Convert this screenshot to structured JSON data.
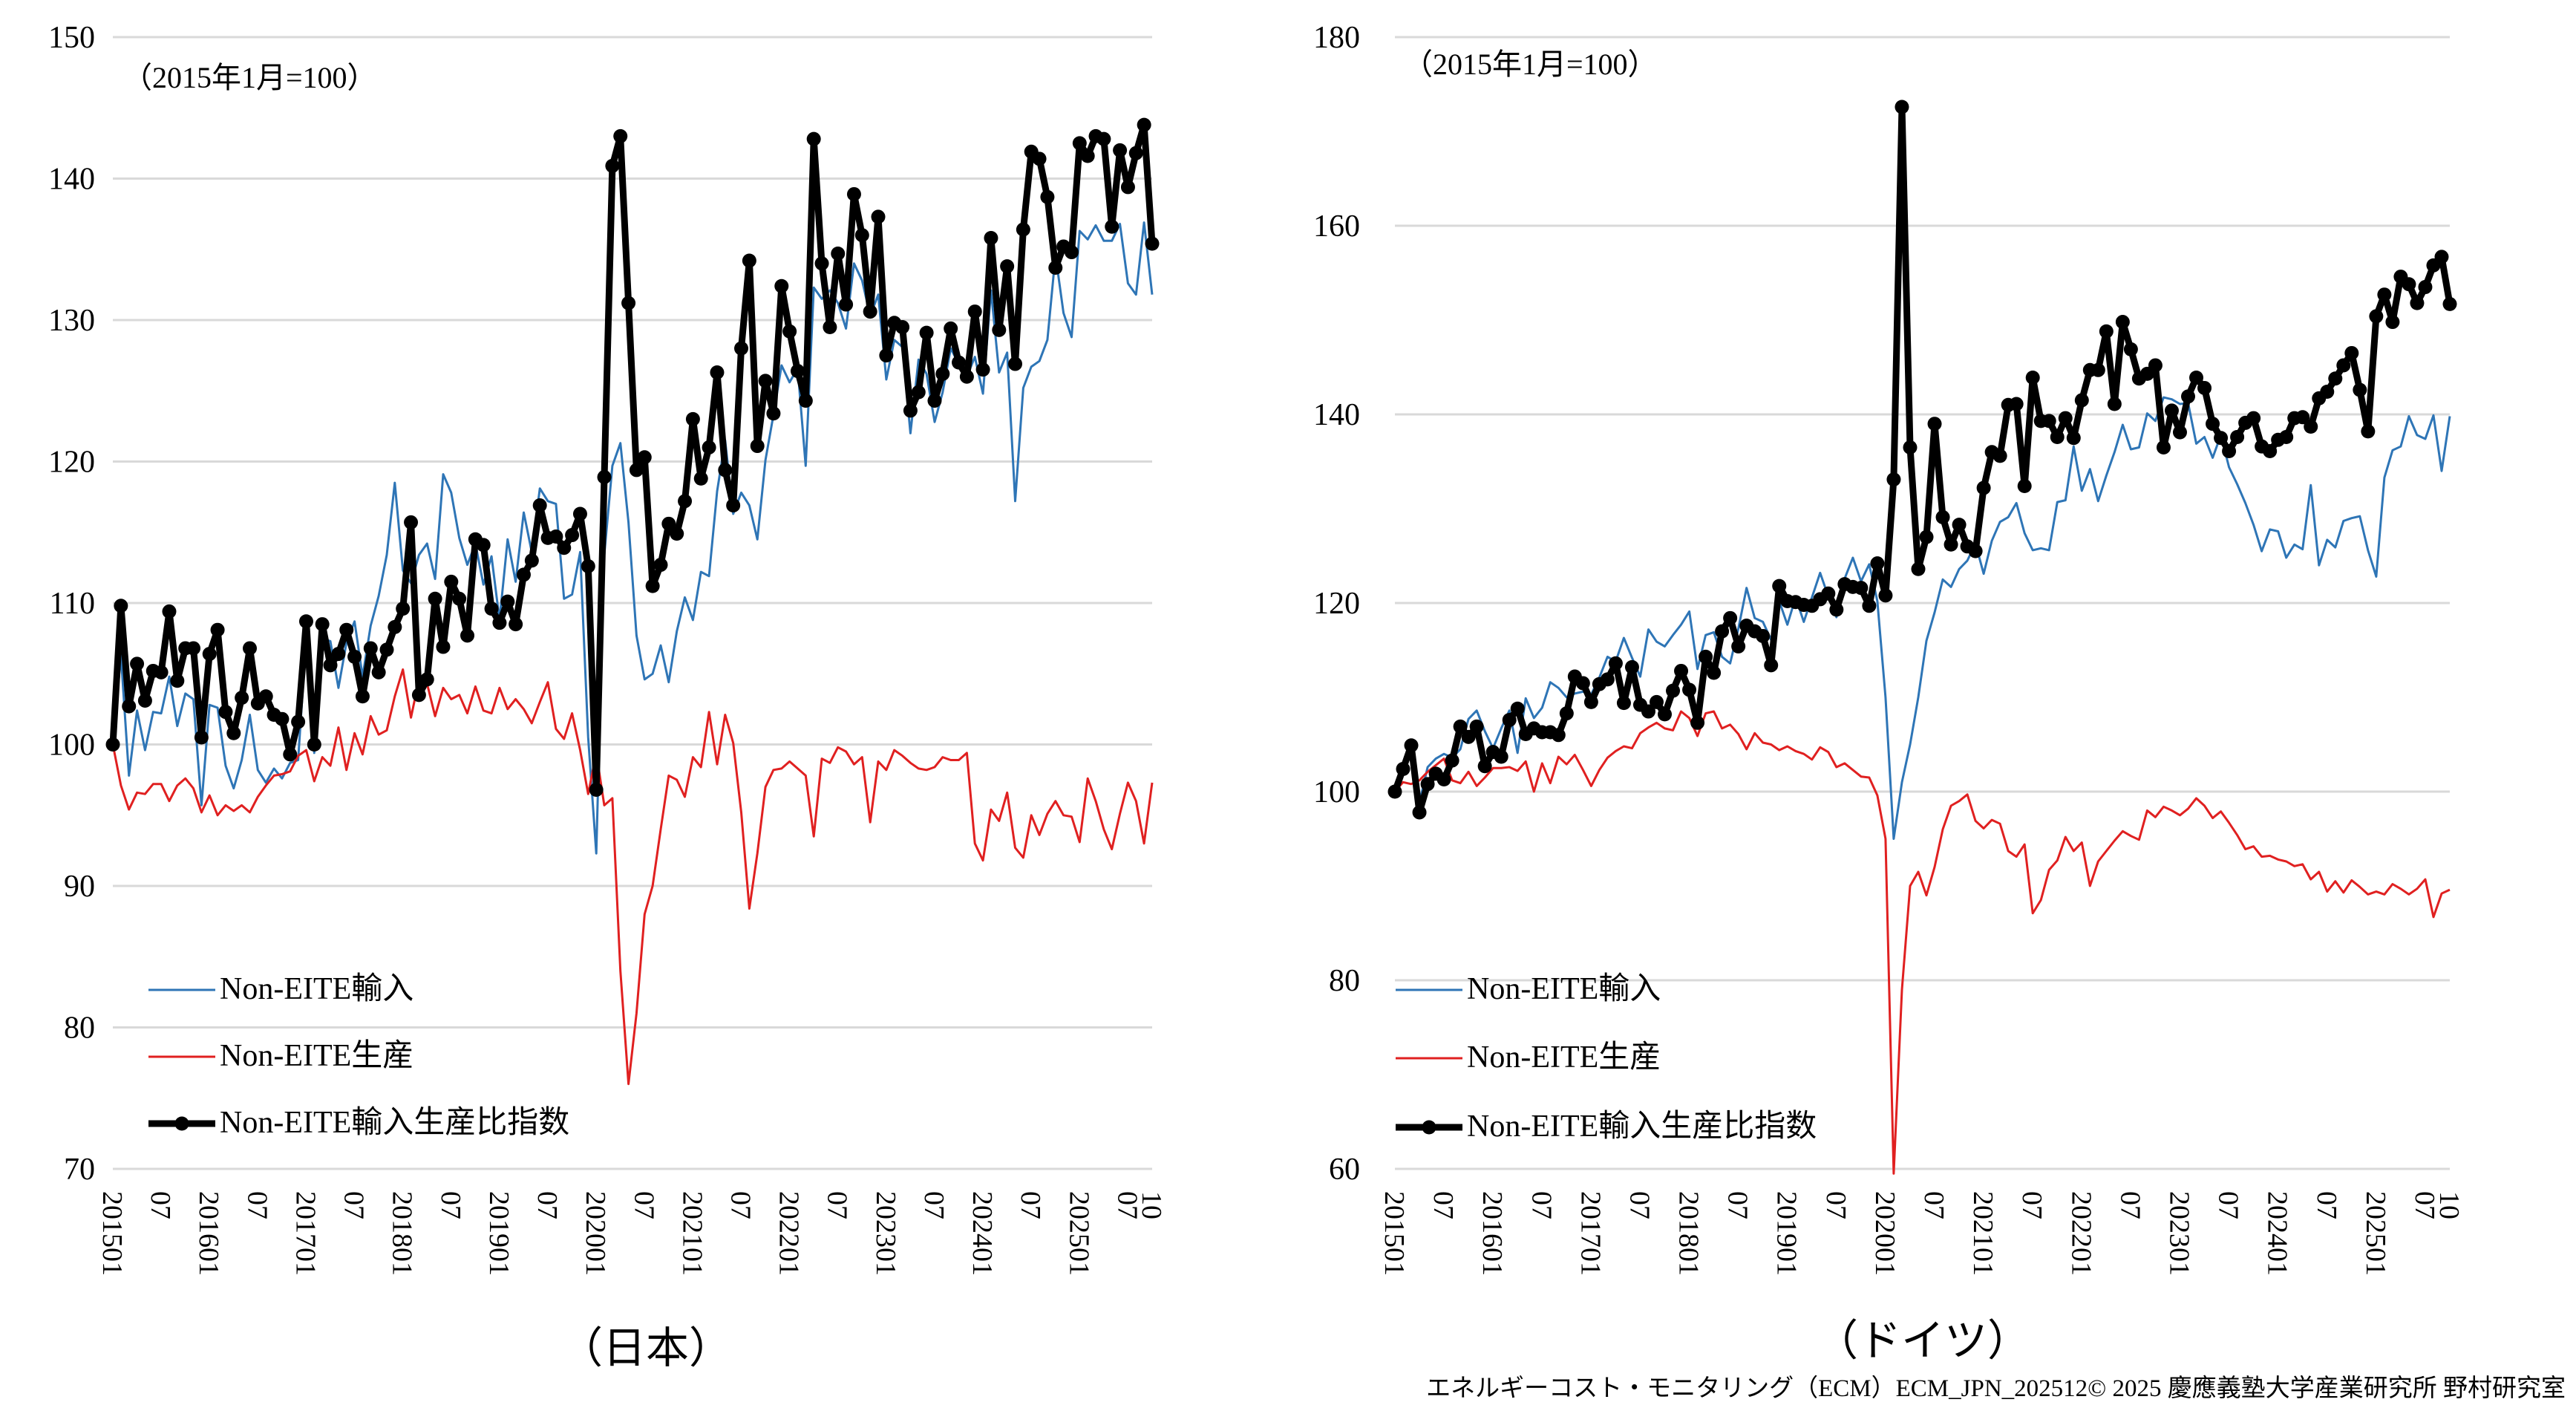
{
  "footer": "エネルギーコスト・モニタリング（ECM）ECM_JPN_202512© 2025 慶應義塾大学産業研究所 野村研究室",
  "colors": {
    "import": "#2E75B6",
    "production": "#E02020",
    "ratio": "#000000",
    "grid": "#D9D9D9"
  },
  "chart_data": [
    {
      "type": "line",
      "id": "japan",
      "caption": "（日本）",
      "note": "（2015年1月=100）",
      "ylim": [
        70,
        150
      ],
      "yticks": [
        70,
        80,
        90,
        100,
        110,
        120,
        130,
        140,
        150
      ],
      "x_start": "2015-01",
      "x_tick_labels": [
        "201501",
        "07",
        "201601",
        "07",
        "201701",
        "07",
        "201801",
        "07",
        "201901",
        "07",
        "202001",
        "07",
        "202101",
        "07",
        "202201",
        "07",
        "202301",
        "07",
        "202401",
        "07",
        "202501",
        "07",
        "10"
      ],
      "grid": true,
      "legend_position": "bottom-left",
      "series": [
        {
          "name": "Non-EITE輸入",
          "key": "import",
          "markers": false,
          "values": [
            100,
            106.3,
            97.8,
            102.4,
            99.6,
            102.3,
            102.2,
            104.8,
            101.3,
            103.6,
            103.2,
            95.7,
            102.8,
            102.6,
            98.5,
            96.9,
            98.9,
            102.1,
            98.2,
            97.3,
            98.3,
            97.6,
            98.7,
            98.9,
            107.6,
            99.4,
            107.5,
            107.3,
            104.0,
            107.2,
            108.7,
            104.8,
            108.4,
            110.5,
            113.4,
            118.5,
            112.3,
            111.4,
            113.4,
            114.2,
            111.7,
            119.1,
            117.8,
            114.6,
            112.7,
            114.2,
            111.3,
            113.3,
            108.8,
            114.5,
            111.5,
            116.4,
            113.6,
            118.1,
            117.2,
            117.0,
            110.3,
            110.6,
            113.6,
            100.5,
            92.3,
            113.4,
            119.7,
            121.3,
            115.7,
            107.7,
            104.6,
            105.0,
            107.0,
            104.4,
            108.0,
            110.4,
            108.8,
            112.2,
            111.9,
            117.9,
            121.5,
            116.3,
            117.8,
            116.9,
            114.5,
            120.1,
            123.3,
            126.8,
            125.6,
            126.6,
            119.7,
            132.3,
            131.5,
            132.1,
            131.2,
            129.4,
            134.0,
            132.8,
            130.3,
            131.8,
            125.8,
            128.6,
            128.1,
            122.0,
            127.2,
            126.2,
            122.8,
            124.9,
            128.0,
            126.9,
            126.0,
            127.4,
            124.8,
            132.1,
            126.3,
            127.7,
            117.2,
            125.2,
            126.7,
            127.1,
            128.6,
            134.6,
            130.5,
            128.8,
            136.3,
            135.7,
            136.7,
            135.6,
            135.6,
            136.8,
            132.6,
            131.8,
            136.9,
            131.8
          ]
        },
        {
          "name": "Non-EITE生産",
          "key": "production",
          "markers": false,
          "values": [
            100,
            97.1,
            95.4,
            96.6,
            96.5,
            97.2,
            97.2,
            96.0,
            97.1,
            97.6,
            96.9,
            95.2,
            96.4,
            95.0,
            95.7,
            95.3,
            95.7,
            95.2,
            96.3,
            97.1,
            97.8,
            97.9,
            98.1,
            99.2,
            99.6,
            97.4,
            99.1,
            98.5,
            101.2,
            98.2,
            100.8,
            99.3,
            102.0,
            100.7,
            101.0,
            103.4,
            105.3,
            101.9,
            104.6,
            104.3,
            102.0,
            104.0,
            103.2,
            103.5,
            102.2,
            104.1,
            102.4,
            102.2,
            104.0,
            102.5,
            103.2,
            102.5,
            101.5,
            103.0,
            104.4,
            101.1,
            100.4,
            102.2,
            99.6,
            96.5,
            99.4,
            95.7,
            96.2,
            84.0,
            76.0,
            81.0,
            88.0,
            90.0,
            94.0,
            97.8,
            97.5,
            96.3,
            99.1,
            98.4,
            102.3,
            98.6,
            102.1,
            100.1,
            95.2,
            88.4,
            92.3,
            97.0,
            98.2,
            98.3,
            98.8,
            98.3,
            97.8,
            93.5,
            99.0,
            98.7,
            99.8,
            99.5,
            98.6,
            99.1,
            94.5,
            98.8,
            98.2,
            99.6,
            99.2,
            98.7,
            98.3,
            98.2,
            98.4,
            99.1,
            98.9,
            98.9,
            99.4,
            93.0,
            91.8,
            95.4,
            94.6,
            96.6,
            92.7,
            92.0,
            95.0,
            93.6,
            95.1,
            96.0,
            95.0,
            94.9,
            93.1,
            97.6,
            96.0,
            94.0,
            92.6,
            95.1,
            97.3,
            96.0,
            93.0,
            97.3
          ]
        },
        {
          "name": "Non-EITE輸入生産比指数",
          "key": "ratio",
          "markers": true,
          "values": [
            100,
            109.8,
            102.7,
            105.7,
            103.1,
            105.2,
            105.1,
            109.4,
            104.5,
            106.8,
            106.8,
            100.5,
            106.4,
            108.1,
            102.3,
            100.8,
            103.3,
            106.8,
            102.9,
            103.4,
            102.1,
            101.8,
            99.3,
            101.6,
            108.7,
            100.0,
            108.5,
            105.6,
            106.4,
            108.1,
            106.2,
            103.4,
            106.8,
            105.1,
            106.7,
            108.3,
            109.6,
            115.7,
            103.5,
            104.6,
            110.3,
            106.9,
            111.5,
            110.3,
            107.7,
            114.5,
            114.1,
            109.6,
            108.6,
            110.1,
            108.5,
            112.0,
            113.0,
            116.9,
            114.6,
            114.7,
            113.9,
            114.8,
            116.3,
            112.6,
            96.8,
            118.9,
            140.9,
            143.0,
            131.2,
            119.4,
            120.3,
            111.2,
            112.7,
            115.6,
            114.9,
            117.2,
            123.0,
            118.8,
            121.0,
            126.3,
            119.4,
            116.9,
            128.0,
            134.2,
            121.1,
            125.7,
            123.4,
            132.4,
            129.2,
            126.4,
            124.3,
            142.8,
            134.0,
            129.5,
            134.7,
            131.1,
            138.9,
            136.0,
            130.6,
            137.3,
            127.5,
            129.8,
            129.5,
            123.6,
            124.9,
            129.1,
            124.3,
            126.2,
            129.4,
            127.0,
            126.0,
            130.6,
            126.5,
            135.8,
            129.3,
            133.8,
            126.9,
            136.4,
            141.9,
            141.4,
            138.7,
            133.7,
            135.2,
            134.8,
            142.5,
            141.6,
            143.0,
            142.8,
            136.6,
            142.0,
            139.4,
            141.8,
            143.8,
            135.4
          ]
        }
      ]
    },
    {
      "type": "line",
      "id": "germany",
      "caption": "（ドイツ）",
      "note": "（2015年1月=100）",
      "ylim": [
        60,
        180
      ],
      "yticks": [
        60,
        80,
        100,
        120,
        140,
        160,
        180
      ],
      "x_start": "2015-01",
      "x_tick_labels": [
        "201501",
        "07",
        "201601",
        "07",
        "201701",
        "07",
        "201801",
        "07",
        "201901",
        "07",
        "202001",
        "07",
        "202101",
        "07",
        "202201",
        "07",
        "202301",
        "07",
        "202401",
        "07",
        "202501",
        "07",
        "10"
      ],
      "grid": true,
      "legend_position": "bottom-left",
      "series": [
        {
          "name": "Non-EITE輸入",
          "key": "import",
          "markers": false,
          "values": [
            100,
            102.1,
            104.8,
            98.8,
            102.6,
            103.5,
            104.0,
            103.6,
            104.5,
            107.7,
            108.6,
            106.4,
            104.6,
            106.7,
            108.6,
            104.1,
            109.9,
            107.8,
            108.9,
            111.6,
            111.0,
            110.0,
            110.4,
            110.6,
            110.3,
            112.1,
            114.3,
            113.8,
            116.3,
            114.2,
            112.2,
            117.2,
            115.9,
            115.4,
            116.6,
            117.7,
            119.1,
            113.0,
            116.6,
            116.9,
            114.3,
            113.6,
            117.3,
            121.6,
            118.4,
            118.0,
            116.1,
            120.2,
            117.7,
            120.6,
            118.0,
            120.6,
            123.2,
            120.7,
            118.5,
            122.6,
            124.8,
            122.3,
            124.1,
            120.2,
            110.0,
            95.0,
            101.0,
            105.0,
            110.0,
            116.0,
            119.0,
            122.5,
            121.7,
            123.6,
            124.5,
            126.3,
            123.1,
            126.6,
            128.6,
            129.1,
            130.6,
            127.4,
            125.6,
            125.8,
            125.6,
            130.7,
            130.9,
            136.6,
            131.9,
            134.2,
            130.8,
            133.5,
            136.0,
            138.9,
            136.3,
            136.5,
            140.1,
            139.3,
            141.8,
            141.6,
            141.1,
            141.2,
            136.9,
            137.6,
            135.4,
            137.8,
            134.4,
            132.6,
            130.6,
            128.3,
            125.5,
            127.8,
            127.6,
            124.8,
            126.2,
            125.7,
            132.5,
            124.0,
            126.7,
            125.9,
            128.7,
            129.0,
            129.2,
            125.6,
            122.8,
            133.3,
            136.2,
            136.6,
            139.8,
            137.8,
            137.4,
            139.9,
            134.0,
            139.8
          ]
        },
        {
          "name": "Non-EITE生産",
          "key": "production",
          "markers": false,
          "values": [
            100,
            101.0,
            100.8,
            101.2,
            102.1,
            102.8,
            103.5,
            101.2,
            100.9,
            102.1,
            100.6,
            101.5,
            102.5,
            102.5,
            102.6,
            102.2,
            103.2,
            100.0,
            103.0,
            100.9,
            103.7,
            102.9,
            103.9,
            102.3,
            100.6,
            102.3,
            103.6,
            104.3,
            104.8,
            104.6,
            106.2,
            106.8,
            107.3,
            106.7,
            106.5,
            108.5,
            107.8,
            105.9,
            108.3,
            108.5,
            106.7,
            107.1,
            106.1,
            104.5,
            106.2,
            105.2,
            105.0,
            104.4,
            104.8,
            104.3,
            104.0,
            103.4,
            104.7,
            104.2,
            102.6,
            103.0,
            102.3,
            101.6,
            101.5,
            99.6,
            95.0,
            59.5,
            79.0,
            90.0,
            91.5,
            89.0,
            92.0,
            96.0,
            98.5,
            99.0,
            99.7,
            96.9,
            96.1,
            97.0,
            96.6,
            93.7,
            93.1,
            94.4,
            87.1,
            88.5,
            91.7,
            92.7,
            95.2,
            93.7,
            94.6,
            90.0,
            92.6,
            93.7,
            94.8,
            95.8,
            95.3,
            94.9,
            98.0,
            97.3,
            98.4,
            98.0,
            97.5,
            98.2,
            99.3,
            98.5,
            97.2,
            97.9,
            96.7,
            95.4,
            93.9,
            94.2,
            93.1,
            93.2,
            92.8,
            92.6,
            92.1,
            92.3,
            90.7,
            91.5,
            89.4,
            90.5,
            89.3,
            90.6,
            89.9,
            89.1,
            89.4,
            89.1,
            90.2,
            89.7,
            89.1,
            89.7,
            90.7,
            86.7,
            89.2,
            89.6
          ]
        },
        {
          "name": "Non-EITE輸入生産比指数",
          "key": "ratio",
          "markers": true,
          "values": [
            100,
            102.4,
            104.9,
            97.8,
            100.8,
            101.9,
            101.3,
            103.3,
            106.9,
            105.8,
            106.9,
            102.7,
            104.2,
            103.7,
            107.6,
            108.8,
            106.1,
            106.7,
            106.3,
            106.3,
            106.0,
            108.3,
            112.2,
            111.5,
            109.5,
            111.4,
            111.9,
            113.6,
            109.4,
            113.2,
            109.2,
            108.5,
            109.5,
            108.2,
            110.7,
            112.8,
            110.8,
            107.3,
            114.3,
            112.6,
            117.0,
            118.4,
            115.4,
            117.6,
            117.0,
            116.5,
            113.4,
            121.8,
            120.2,
            120.1,
            119.8,
            119.7,
            120.4,
            121.0,
            119.3,
            122.0,
            121.7,
            121.6,
            119.7,
            124.2,
            120.8,
            133.1,
            172.6,
            136.5,
            123.6,
            127.0,
            139.0,
            129.1,
            126.2,
            128.3,
            126.0,
            125.5,
            132.2,
            136.0,
            135.6,
            141.0,
            141.1,
            132.4,
            143.9,
            139.3,
            139.3,
            137.6,
            139.6,
            137.5,
            141.5,
            144.7,
            144.7,
            148.8,
            141.1,
            149.8,
            146.9,
            143.8,
            144.3,
            145.2,
            136.5,
            140.4,
            138.1,
            141.9,
            143.9,
            142.8,
            139.0,
            137.5,
            136.1,
            137.6,
            139.1,
            139.6,
            136.6,
            136.1,
            137.3,
            137.6,
            139.6,
            139.7,
            138.7,
            141.7,
            142.4,
            143.8,
            145.2,
            146.5,
            142.6,
            138.2,
            150.4,
            152.7,
            149.8,
            154.6,
            153.8,
            151.8,
            153.5,
            155.8,
            156.7,
            151.7
          ]
        }
      ]
    }
  ]
}
